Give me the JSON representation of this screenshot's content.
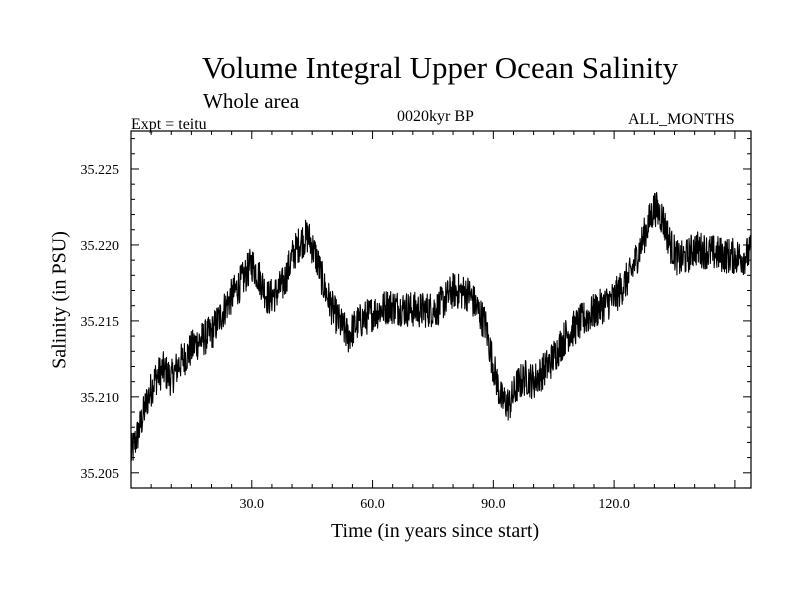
{
  "header": {
    "title": "Volume Integral Upper Ocean Salinity",
    "subtitle": "Whole area",
    "experiment": "Expt = teitu",
    "era": "0020kyr BP",
    "months": "ALL_MONTHS"
  },
  "chart_data": {
    "type": "line",
    "title": "Volume Integral Upper Ocean Salinity",
    "xlabel": "Time (in years since start)",
    "ylabel": "Salinity (in PSU)",
    "xlim": [
      0,
      154
    ],
    "ylim": [
      35.204,
      35.2275
    ],
    "x_ticks": [
      30,
      60,
      90,
      120
    ],
    "x_tick_labels": [
      "30.0",
      "60.0",
      "90.0",
      "120.0"
    ],
    "y_ticks": [
      35.205,
      35.21,
      35.215,
      35.22,
      35.225
    ],
    "y_tick_labels": [
      "35.205",
      "35.210",
      "35.215",
      "35.220",
      "35.225"
    ],
    "grid": false,
    "series": [
      {
        "name": "Salinity",
        "noise_amplitude": 0.0015,
        "x": [
          0,
          2,
          4,
          6,
          8,
          10,
          12,
          14,
          16,
          20,
          24,
          28,
          30,
          32,
          34,
          36,
          38,
          40,
          42,
          44,
          46,
          48,
          50,
          52,
          54,
          56,
          60,
          64,
          68,
          72,
          76,
          80,
          84,
          88,
          90,
          92,
          94,
          96,
          98,
          100,
          104,
          108,
          112,
          116,
          120,
          124,
          128,
          130,
          132,
          134,
          136,
          138,
          140,
          144,
          148,
          152,
          154
        ],
        "values": [
          35.2062,
          35.2078,
          35.2098,
          35.2112,
          35.2118,
          35.2112,
          35.2122,
          35.2128,
          35.2135,
          35.2142,
          35.2162,
          35.2178,
          35.2188,
          35.2178,
          35.2165,
          35.2168,
          35.2175,
          35.2192,
          35.2202,
          35.2206,
          35.2192,
          35.2172,
          35.2158,
          35.2148,
          35.214,
          35.2148,
          35.2155,
          35.216,
          35.2158,
          35.2157,
          35.2158,
          35.217,
          35.2168,
          35.2148,
          35.212,
          35.2098,
          35.2095,
          35.2108,
          35.2113,
          35.211,
          35.2122,
          35.214,
          35.215,
          35.2158,
          35.2165,
          35.218,
          35.221,
          35.2225,
          35.2218,
          35.22,
          35.219,
          35.2192,
          35.2198,
          35.2195,
          35.2193,
          35.2192,
          35.2195
        ]
      }
    ]
  }
}
